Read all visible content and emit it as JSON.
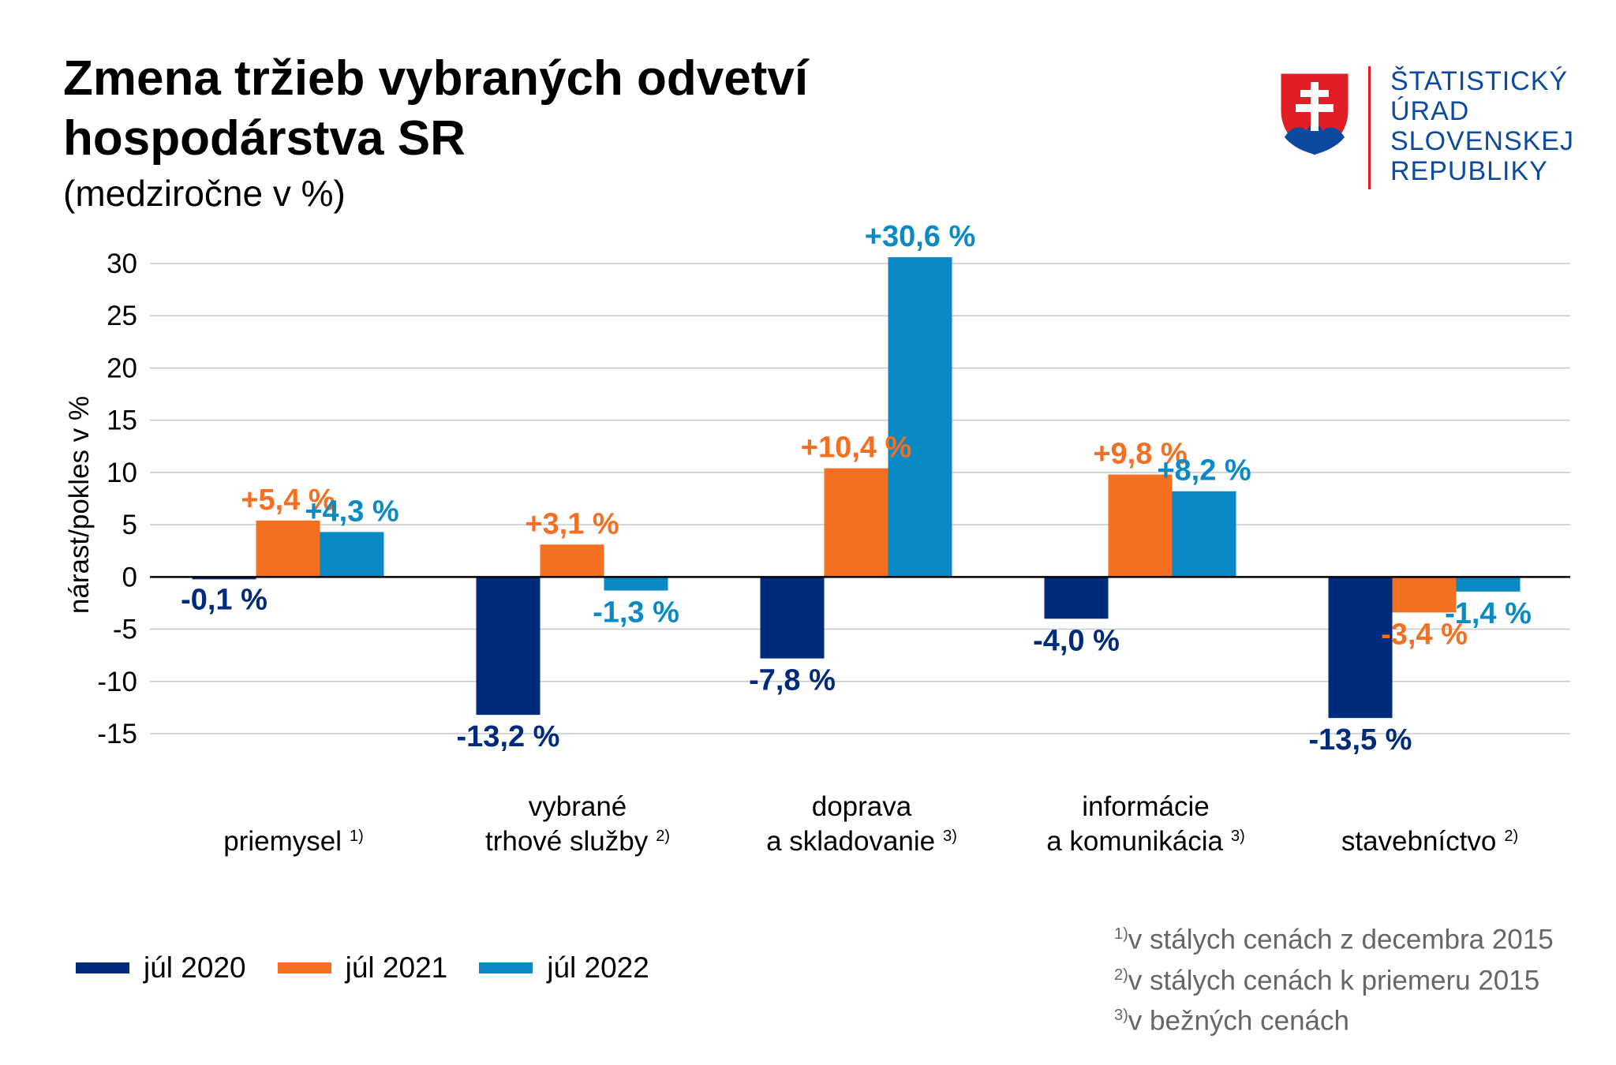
{
  "header": {
    "title_line1": "Zmena tržieb vybraných odvetví",
    "title_line2": "hospodárstva SR",
    "subtitle": "(medziročne v %)"
  },
  "logo": {
    "line1": "ŠTATISTICKÝ",
    "line2": "ÚRAD",
    "line3": "SLOVENSKEJ",
    "line4": "REPUBLIKY",
    "icon": "slovak-coat-of-arms-icon"
  },
  "chart_data": {
    "type": "bar",
    "ylabel": "nárast/pokles v %",
    "ylim": [
      -15,
      30
    ],
    "yticks": [
      30,
      25,
      20,
      15,
      10,
      5,
      0,
      -5,
      -10,
      -15
    ],
    "grid": true,
    "legend_position": "bottom-left",
    "categories": [
      {
        "lines": [
          "priemysel"
        ],
        "note": "1)"
      },
      {
        "lines": [
          "vybrané",
          "trhové služby"
        ],
        "note": "2)"
      },
      {
        "lines": [
          "doprava",
          "a skladovanie"
        ],
        "note": "3)"
      },
      {
        "lines": [
          "informácie",
          "a komunikácia"
        ],
        "note": "3)"
      },
      {
        "lines": [
          "stavebníctvo"
        ],
        "note": "2)"
      }
    ],
    "series": [
      {
        "name": "júl 2020",
        "color": "#002a7a",
        "values": [
          -0.1,
          -13.2,
          -7.8,
          -4.0,
          -13.5
        ],
        "labels": [
          "-0,1 %",
          "-13,2 %",
          "-7,8 %",
          "-4,0 %",
          "-13,5 %"
        ]
      },
      {
        "name": "júl 2021",
        "color": "#f36f21",
        "values": [
          5.4,
          3.1,
          10.4,
          9.8,
          -3.4
        ],
        "labels": [
          "+5,4 %",
          "+3,1 %",
          "+10,4 %",
          "+9,8 %",
          "-3,4 %"
        ]
      },
      {
        "name": "júl 2022",
        "color": "#0a8ac4",
        "values": [
          4.3,
          -1.3,
          30.6,
          8.2,
          -1.4
        ],
        "labels": [
          "+4,3 %",
          "-1,3 %",
          "+30,6 %",
          "+8,2 %",
          "-1,4 %"
        ]
      }
    ]
  },
  "notes": [
    {
      "mark": "1)",
      "text": "v stálych cenách z decembra 2015"
    },
    {
      "mark": "2)",
      "text": "v stálych cenách k priemeru 2015"
    },
    {
      "mark": "3)",
      "text": "v bežných cenách"
    }
  ]
}
